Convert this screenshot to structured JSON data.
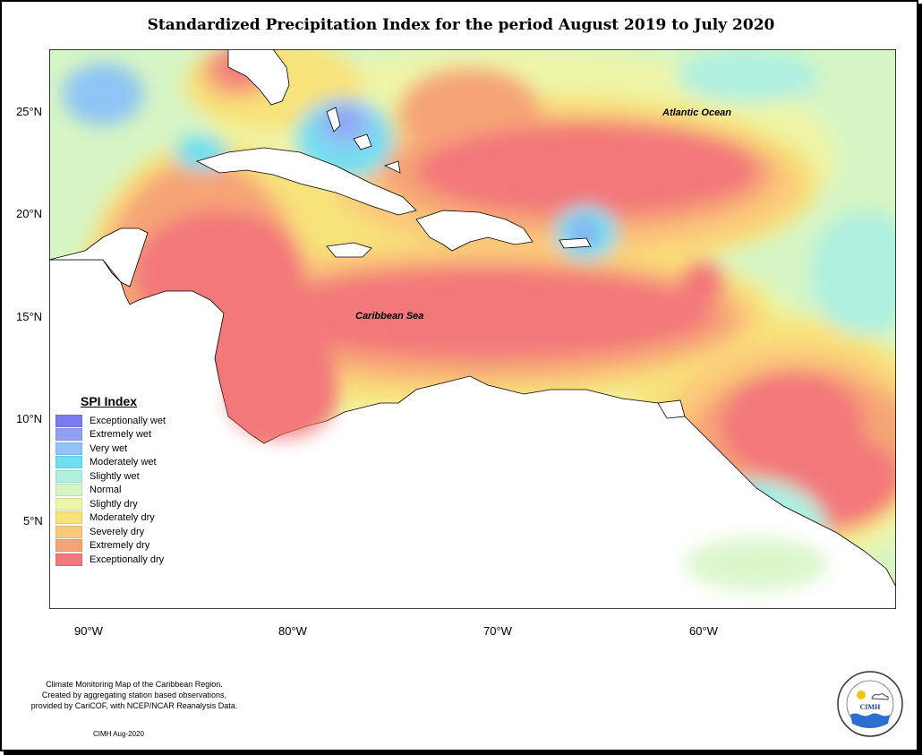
{
  "title": "Standardized Precipitation Index for the period August 2019 to July 2020",
  "axes": {
    "y_ticks": [
      "25°N",
      "20°N",
      "15°N",
      "10°N",
      "5°N"
    ],
    "x_ticks": [
      "90°W",
      "80°W",
      "70°W",
      "60°W"
    ]
  },
  "labels": {
    "atlantic": "Atlantic Ocean",
    "caribbean": "Caribbean Sea"
  },
  "legend": {
    "title": "SPI Index",
    "items": [
      {
        "label": "Exceptionally wet",
        "color": "#7b7bef"
      },
      {
        "label": "Extremely wet",
        "color": "#8fa0f5"
      },
      {
        "label": "Very wet",
        "color": "#8ec5f4"
      },
      {
        "label": "Moderately wet",
        "color": "#6fe0f0"
      },
      {
        "label": "Slightly wet",
        "color": "#b0f0e0"
      },
      {
        "label": "Normal",
        "color": "#d6f5c4"
      },
      {
        "label": "Slightly dry",
        "color": "#eef5a8"
      },
      {
        "label": "Moderately dry",
        "color": "#f8e27a"
      },
      {
        "label": "Severely dry",
        "color": "#fbc97a"
      },
      {
        "label": "Extremely dry",
        "color": "#f6a477"
      },
      {
        "label": "Exceptionally dry",
        "color": "#f3787a"
      }
    ]
  },
  "caption": {
    "line1": "Climate Monitoring Map of the Caribbean Region.",
    "line2": "Created by aggregating station based observations,",
    "line3": "provided by CariCOF, with NCEP/NCAR Reanalysis Data."
  },
  "credit": "CIMH Aug-2020",
  "logo": {
    "text": "CIMH",
    "ring_text": "Caribbean Institute for Meteorology and Hydrology"
  }
}
